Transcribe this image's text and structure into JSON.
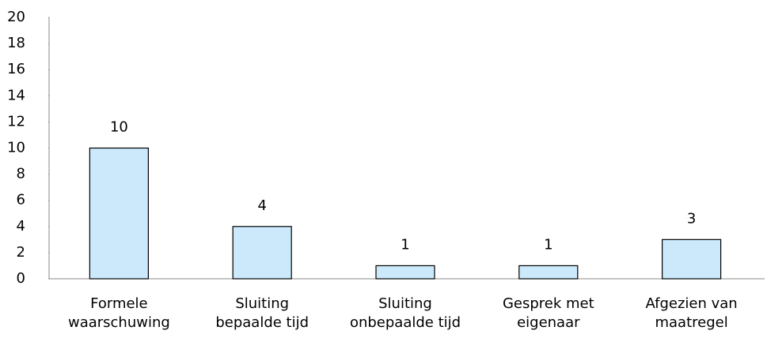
{
  "chart_data": {
    "type": "bar",
    "categories": [
      [
        "Formele",
        "waarschuwing"
      ],
      [
        "Sluiting",
        "bepaalde tijd"
      ],
      [
        "Sluiting",
        "onbepaalde tijd"
      ],
      [
        "Gesprek met",
        "eigenaar"
      ],
      [
        "Afgezien van",
        "maatregel"
      ]
    ],
    "values": [
      10,
      4,
      1,
      1,
      3
    ],
    "color": "#cce9fb",
    "ylim": [
      0,
      20
    ],
    "yticks": [
      0,
      2,
      4,
      6,
      8,
      10,
      12,
      14,
      16,
      18,
      20
    ],
    "grid": false
  }
}
